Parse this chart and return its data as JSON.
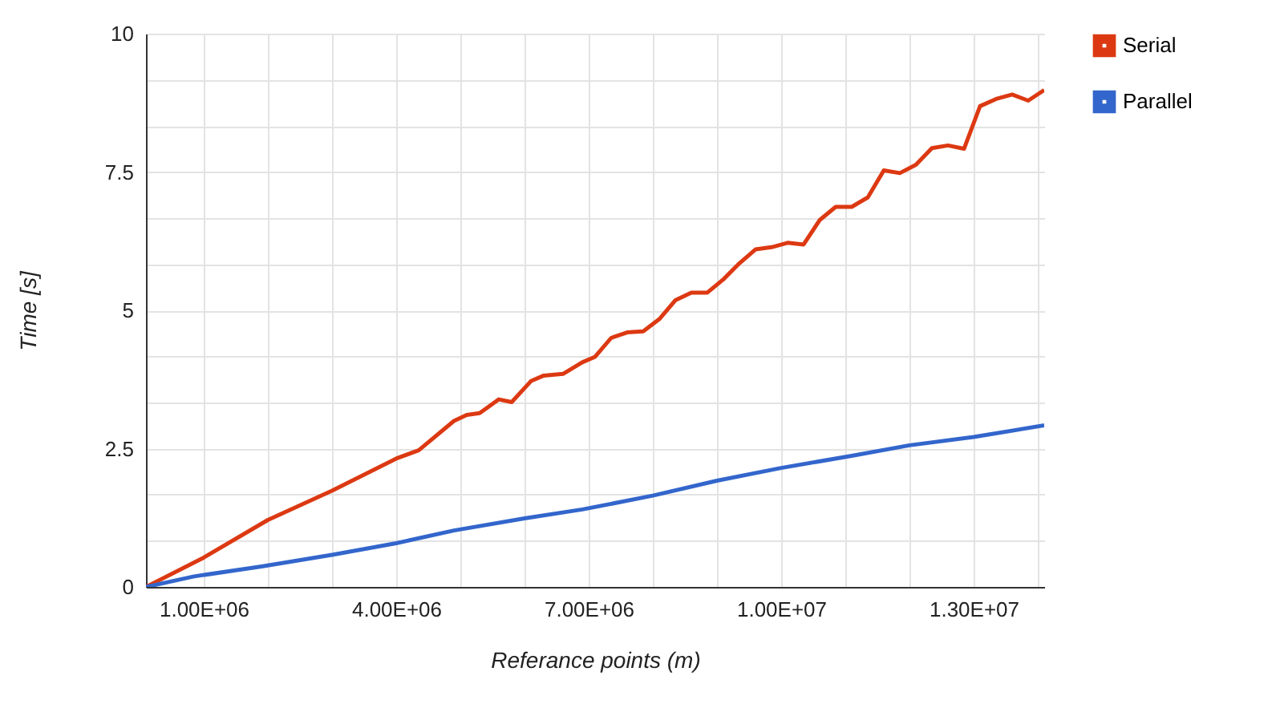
{
  "chart_data": {
    "type": "line",
    "xlabel": "Referance points (m)",
    "ylabel": "Time [s]",
    "xlim": [
      100000,
      14100000
    ],
    "ylim": [
      0,
      10
    ],
    "xticks": [
      {
        "value": 1000000,
        "label": "1.00E+06"
      },
      {
        "value": 2000000,
        "label": null
      },
      {
        "value": 3000000,
        "label": null
      },
      {
        "value": 4000000,
        "label": "4.00E+06"
      },
      {
        "value": 5000000,
        "label": null
      },
      {
        "value": 6000000,
        "label": null
      },
      {
        "value": 7000000,
        "label": "7.00E+06"
      },
      {
        "value": 8000000,
        "label": null
      },
      {
        "value": 9000000,
        "label": null
      },
      {
        "value": 10000000,
        "label": "1.00E+07"
      },
      {
        "value": 11000000,
        "label": null
      },
      {
        "value": 12000000,
        "label": null
      },
      {
        "value": 13000000,
        "label": "1.30E+07"
      },
      {
        "value": 14000000,
        "label": null
      }
    ],
    "yticks": [
      0,
      {
        "value": 0.833,
        "label": null
      },
      {
        "value": 1.667,
        "label": null
      },
      2.5,
      {
        "value": 3.333,
        "label": null
      },
      {
        "value": 4.167,
        "label": null
      },
      5,
      {
        "value": 5.833,
        "label": null
      },
      {
        "value": 6.667,
        "label": null
      },
      7.5,
      {
        "value": 8.333,
        "label": null
      },
      {
        "value": 9.167,
        "label": null
      },
      10
    ],
    "grid": true,
    "legend": "top right",
    "series": [
      {
        "name": "Serial",
        "color": "#dc3912",
        "x": [
          100000,
          1000000,
          2000000,
          3000000,
          4000000,
          4350000,
          4900000,
          5100000,
          5300000,
          5600000,
          5800000,
          6100000,
          6300000,
          6600000,
          6900000,
          7100000,
          7350000,
          7600000,
          7850000,
          8100000,
          8350000,
          8600000,
          8850000,
          9100000,
          9350000,
          9600000,
          9850000,
          10100000,
          10350000,
          10600000,
          10850000,
          11100000,
          11350000,
          11600000,
          11850000,
          12100000,
          12350000,
          12600000,
          12850000,
          13100000,
          13350000,
          13600000,
          13850000,
          14100000
        ],
        "values": [
          0,
          0.53,
          1.21,
          1.74,
          2.32,
          2.47,
          3.0,
          3.11,
          3.14,
          3.39,
          3.34,
          3.72,
          3.82,
          3.85,
          4.06,
          4.16,
          4.5,
          4.6,
          4.62,
          4.84,
          5.18,
          5.32,
          5.32,
          5.56,
          5.85,
          6.1,
          6.14,
          6.22,
          6.19,
          6.63,
          6.87,
          6.87,
          7.04,
          7.53,
          7.48,
          7.63,
          7.93,
          7.98,
          7.92,
          8.69,
          8.82,
          8.9,
          8.79,
          8.98
        ]
      },
      {
        "name": "Parallel",
        "color": "#3366cc",
        "x": [
          100000,
          850000,
          1900000,
          3000000,
          4000000,
          4900000,
          6000000,
          6900000,
          8000000,
          9000000,
          10000000,
          11100000,
          12000000,
          13000000,
          14100000
        ],
        "values": [
          0,
          0.19,
          0.37,
          0.58,
          0.79,
          1.02,
          1.24,
          1.4,
          1.65,
          1.92,
          2.15,
          2.37,
          2.56,
          2.71,
          2.92
        ]
      }
    ]
  }
}
